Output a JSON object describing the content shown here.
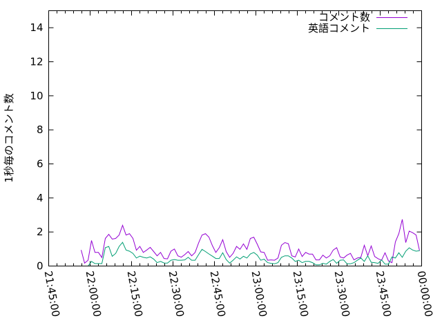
{
  "chart_data": {
    "type": "line",
    "title": "",
    "xlabel": "",
    "ylabel": "1秒毎のコメント数",
    "xlim": [
      "21:45:00",
      "00:00:00"
    ],
    "ylim": [
      0,
      15
    ],
    "xticks": [
      "21:45:00",
      "22:00:00",
      "22:15:00",
      "22:30:00",
      "22:45:00",
      "23:00:00",
      "23:15:00",
      "23:30:00",
      "23:45:00",
      "00:00:00"
    ],
    "yticks": [
      "0",
      "2",
      "4",
      "6",
      "8",
      "10",
      "12",
      "14"
    ],
    "grid": false,
    "legend_position": "top-right",
    "x": [
      "21:56:45",
      "21:58:00",
      "21:59:15",
      "22:00:30",
      "22:01:45",
      "22:03:00",
      "22:04:15",
      "22:05:30",
      "22:06:45",
      "22:08:00",
      "22:09:15",
      "22:10:30",
      "22:11:45",
      "22:13:00",
      "22:14:15",
      "22:15:30",
      "22:16:45",
      "22:18:00",
      "22:19:15",
      "22:20:30",
      "22:21:45",
      "22:23:00",
      "22:24:15",
      "22:25:30",
      "22:26:45",
      "22:28:00",
      "22:29:15",
      "22:30:30",
      "22:31:45",
      "22:33:00",
      "22:34:15",
      "22:35:30",
      "22:36:45",
      "22:38:00",
      "22:39:15",
      "22:40:30",
      "22:41:45",
      "22:43:00",
      "22:44:15",
      "22:45:30",
      "22:46:45",
      "22:48:00",
      "22:49:15",
      "22:50:30",
      "22:51:45",
      "22:53:00",
      "22:54:15",
      "22:55:30",
      "22:56:45",
      "22:58:00",
      "22:59:15",
      "23:00:30",
      "23:01:45",
      "23:03:00",
      "23:04:15",
      "23:05:30",
      "23:06:45",
      "23:08:00",
      "23:09:15",
      "23:10:30",
      "23:11:45",
      "23:13:00",
      "23:14:15",
      "23:15:30",
      "23:16:45",
      "23:18:00",
      "23:19:15",
      "23:20:30",
      "23:21:45",
      "23:23:00",
      "23:24:15",
      "23:25:30",
      "23:26:45",
      "23:28:00",
      "23:29:15",
      "23:30:30",
      "23:31:45",
      "23:33:00",
      "23:34:15",
      "23:35:30",
      "23:36:45",
      "23:38:00",
      "23:39:15",
      "23:40:30",
      "23:41:45",
      "23:43:00",
      "23:44:15",
      "23:45:30",
      "23:46:45",
      "23:48:00",
      "23:49:15",
      "23:50:30",
      "23:51:45",
      "23:53:00",
      "23:54:15",
      "23:55:30",
      "23:56:45",
      "23:58:00",
      "23:59:15"
    ],
    "series": [
      {
        "name": "コメント数",
        "color": "#9400d3",
        "values": [
          0.94,
          0.17,
          0.34,
          1.5,
          0.8,
          0.8,
          0.5,
          1.62,
          1.86,
          1.58,
          1.62,
          1.82,
          2.39,
          1.82,
          1.9,
          1.62,
          0.93,
          1.15,
          0.8,
          0.94,
          1.1,
          0.85,
          0.6,
          0.8,
          0.44,
          0.42,
          0.87,
          1.0,
          0.6,
          0.52,
          0.67,
          0.85,
          0.6,
          0.8,
          1.35,
          1.82,
          1.9,
          1.7,
          1.2,
          0.8,
          1.08,
          1.55,
          0.85,
          0.51,
          0.74,
          1.15,
          0.98,
          1.3,
          0.98,
          1.62,
          1.69,
          1.28,
          0.83,
          0.8,
          0.34,
          0.36,
          0.34,
          0.47,
          1.22,
          1.38,
          1.31,
          0.6,
          0.53,
          1.0,
          0.56,
          0.8,
          0.7,
          0.7,
          0.36,
          0.36,
          0.64,
          0.47,
          0.6,
          0.94,
          1.08,
          0.53,
          0.47,
          0.64,
          0.74,
          0.36,
          0.47,
          0.51,
          1.22,
          0.6,
          1.18,
          0.56,
          0.43,
          0.34,
          0.78,
          0.3,
          0.2,
          1.42,
          1.9,
          2.74,
          1.38,
          2.05,
          1.96,
          1.82,
          0.9
        ]
      },
      {
        "name": "英語コメント",
        "color": "#009e73",
        "values": [
          0,
          0,
          0,
          0.27,
          0.14,
          0.14,
          0.14,
          1.08,
          1.15,
          0.57,
          0.74,
          1.15,
          1.39,
          0.94,
          0.87,
          0.74,
          0.47,
          0.58,
          0.51,
          0.47,
          0.54,
          0.41,
          0.2,
          0.27,
          0.18,
          0.17,
          0.34,
          0.38,
          0.34,
          0.34,
          0.36,
          0.51,
          0.34,
          0.34,
          0.67,
          0.98,
          0.85,
          0.71,
          0.58,
          0.44,
          0.44,
          0.78,
          0.38,
          0.17,
          0.34,
          0.54,
          0.41,
          0.57,
          0.47,
          0.71,
          0.8,
          0.64,
          0.34,
          0.4,
          0.2,
          0.16,
          0.13,
          0.2,
          0.51,
          0.6,
          0.6,
          0.47,
          0.27,
          0.34,
          0.2,
          0.27,
          0.27,
          0.2,
          0.07,
          0.07,
          0.16,
          0.11,
          0.27,
          0.38,
          0.16,
          0.34,
          0.36,
          0.13,
          0.13,
          0.2,
          0.34,
          0.47,
          0.27,
          0.6,
          0.22,
          0.2,
          0.16,
          0.36,
          0.11,
          0.11,
          0.53,
          0.47,
          0.78,
          0.51,
          0.87,
          1.07,
          0.94,
          0.87,
          0.9
        ]
      }
    ]
  }
}
